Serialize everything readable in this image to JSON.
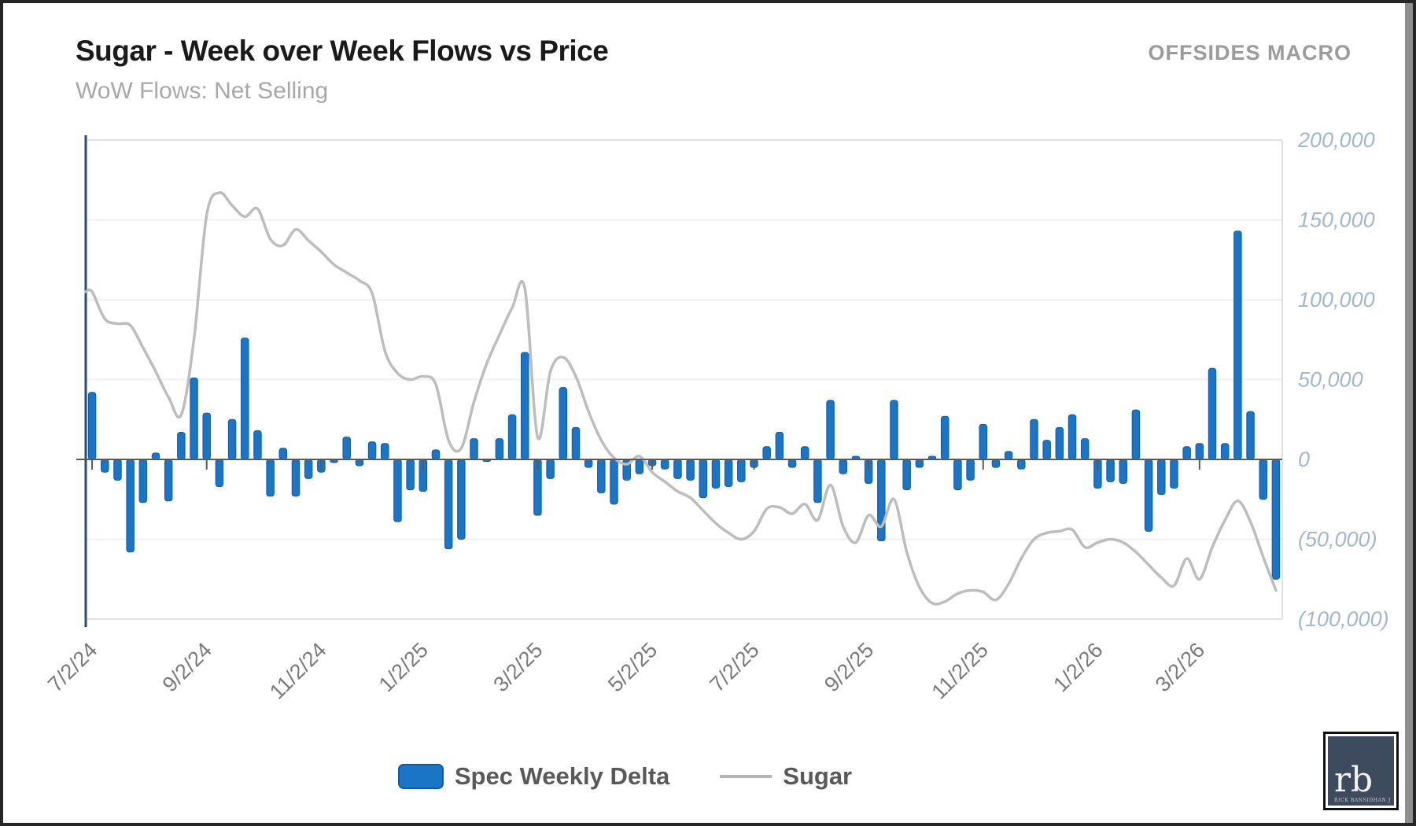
{
  "header": {
    "title": "Sugar - Week over Week Flows vs Price",
    "subtitle": "WoW Flows: Net Selling",
    "brand": "OFFSIDES MACRO"
  },
  "legend": {
    "bar_label": "Spec Weekly Delta",
    "line_label": "Sugar"
  },
  "logo": {
    "monogram": "rb",
    "caption": "RICK BANSIDHAN JR"
  },
  "colors": {
    "bar": "#1b74c5",
    "bar_border": "#0f5ca6",
    "line": "#bdbdbd",
    "zero_line": "#595959",
    "grid": "#edf1f6",
    "plot_border": "#d9d9d9",
    "axis_spine": "#1f4e79",
    "y_label": "#a3b8ce",
    "x_label": "#7a7a7a"
  },
  "chart_data": {
    "type": "bar",
    "subtype": "bar-with-line-overlay",
    "title": "Sugar - Week over Week Flows vs Price",
    "x_unit": "weekly",
    "grid": "horizontal",
    "legend_position": "bottom",
    "y_axis": {
      "side": "right",
      "min": -100000,
      "max": 200000,
      "ticks": [
        {
          "label": "200,000",
          "value": 200000
        },
        {
          "label": "150,000",
          "value": 150000
        },
        {
          "label": "100,000",
          "value": 100000
        },
        {
          "label": "50,000",
          "value": 50000
        },
        {
          "label": "0",
          "value": 0
        },
        {
          "label": "(50,000)",
          "value": -50000
        },
        {
          "label": "(100,000)",
          "value": -100000
        }
      ]
    },
    "x_ticks": [
      {
        "label": "7/2/24",
        "week": 0
      },
      {
        "label": "9/2/24",
        "week": 9
      },
      {
        "label": "11/2/24",
        "week": 18
      },
      {
        "label": "1/2/25",
        "week": 26
      },
      {
        "label": "3/2/25",
        "week": 35
      },
      {
        "label": "5/2/25",
        "week": 44
      },
      {
        "label": "7/2/25",
        "week": 52
      },
      {
        "label": "9/2/25",
        "week": 61
      },
      {
        "label": "11/2/25",
        "week": 70
      },
      {
        "label": "1/2/26",
        "week": 79
      },
      {
        "label": "3/2/26",
        "week": 87
      }
    ],
    "series": [
      {
        "name": "Spec Weekly Delta",
        "type": "bar",
        "values": [
          42000,
          -8000,
          -13000,
          -58000,
          -27000,
          4000,
          -26000,
          17000,
          51000,
          29000,
          -17000,
          25000,
          76000,
          18000,
          -23000,
          7000,
          -23000,
          -12000,
          -8000,
          -2000,
          14000,
          -4000,
          11000,
          10000,
          -39000,
          -19000,
          -20000,
          6000,
          -56000,
          -50000,
          13000,
          -1000,
          13000,
          28000,
          67000,
          -35000,
          -12000,
          45000,
          20000,
          -5000,
          -21000,
          -28000,
          -13000,
          -9000,
          -4000,
          -6000,
          -12000,
          -13000,
          -24000,
          -18000,
          -17000,
          -14000,
          -5000,
          8000,
          17000,
          -5000,
          8000,
          -27000,
          37000,
          -9000,
          2000,
          -15000,
          -51000,
          37000,
          -19000,
          -5000,
          2000,
          27000,
          -19000,
          -13000,
          22000,
          -5000,
          5000,
          -6000,
          25000,
          12000,
          20000,
          28000,
          13000,
          -18000,
          -14000,
          -15000,
          31000,
          -45000,
          -22000,
          -18000,
          8000,
          10000,
          57000,
          10000,
          143000,
          30000,
          -25000,
          -75000
        ]
      },
      {
        "name": "Sugar",
        "type": "line",
        "values": [
          105000,
          88000,
          85000,
          84000,
          70000,
          55000,
          39000,
          28000,
          75000,
          153000,
          167000,
          159000,
          152000,
          157000,
          138000,
          134000,
          144000,
          137000,
          130000,
          122000,
          117000,
          112000,
          104000,
          68000,
          54000,
          50000,
          52000,
          47000,
          12000,
          7000,
          36000,
          60000,
          78000,
          95000,
          107000,
          14000,
          55000,
          64000,
          52000,
          30000,
          12000,
          1000,
          -3000,
          2000,
          -8000,
          -14000,
          -20000,
          -24000,
          -32000,
          -40000,
          -46000,
          -50000,
          -45000,
          -31000,
          -30000,
          -34000,
          -28000,
          -38000,
          -16000,
          -42000,
          -52000,
          -35000,
          -42000,
          -25000,
          -58000,
          -80000,
          -90000,
          -89000,
          -84000,
          -82000,
          -83000,
          -88000,
          -78000,
          -62000,
          -50000,
          -46000,
          -45000,
          -44000,
          -55000,
          -52000,
          -50000,
          -52000,
          -58000,
          -66000,
          -74000,
          -79000,
          -62000,
          -75000,
          -55000,
          -38000,
          -26000,
          -39000,
          -61000,
          -82000
        ]
      }
    ]
  }
}
